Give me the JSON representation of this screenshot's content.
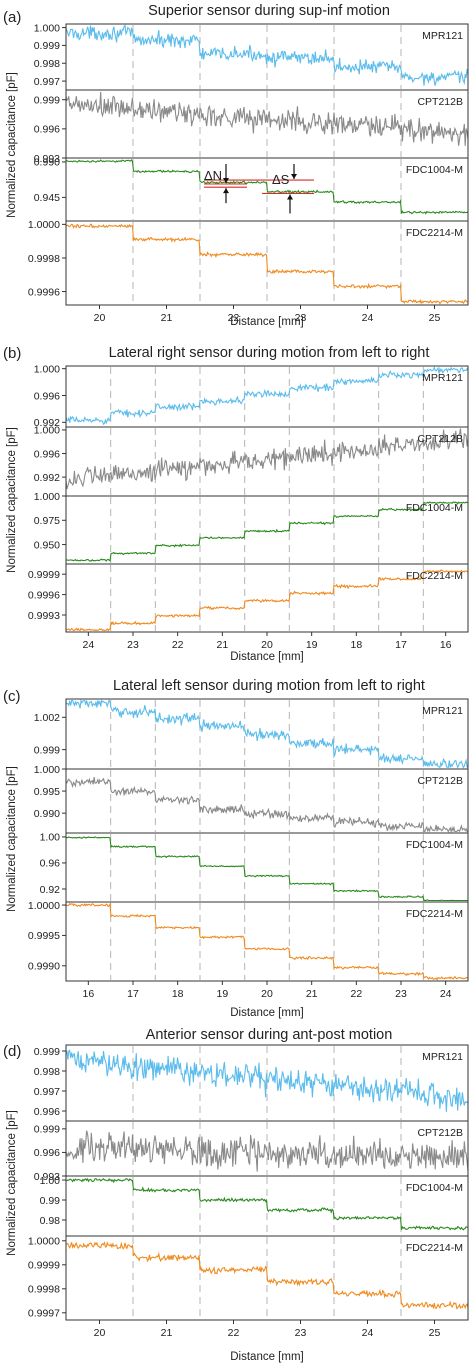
{
  "colors": {
    "MPR121": "#5bbcec",
    "CPT212B": "#8a8a8a",
    "FDC1004-M": "#2a8a1e",
    "FDC2214-M": "#f08a1e",
    "annotation": "#d62c2c"
  },
  "chart_data": [
    {
      "type": "line",
      "panel_letter": "(a)",
      "title": "Superior sensor during sup-inf motion",
      "xlabel": "Distance [mm]",
      "ylabel": "Normalized capacitance [pF]",
      "x_ticks": [
        "20",
        "21",
        "22",
        "23",
        "24",
        "25"
      ],
      "step_boundaries_mm": [
        20.5,
        21.5,
        22.5,
        23.5,
        24.5
      ],
      "xlim": [
        19.5,
        25.5
      ],
      "series": [
        {
          "name": "MPR121",
          "ylim": [
            0.9965,
            1.0002
          ],
          "y_ticks": [
            "1.000",
            "0.999",
            "0.998",
            "0.997"
          ],
          "y_tick_values": [
            1.0,
            0.999,
            0.998,
            0.997
          ],
          "levels": [
            0.9997,
            0.9993,
            0.9985,
            0.9983,
            0.9978,
            0.9972
          ],
          "noise": 0.00025
        },
        {
          "name": "CPT212B",
          "ylim": [
            0.993,
            1.0
          ],
          "y_ticks": [
            "0.999",
            "0.996",
            "0.993"
          ],
          "y_tick_values": [
            0.999,
            0.996,
            0.993
          ],
          "trend": [
            0.9985,
            0.9955
          ],
          "noise": 0.0008
        },
        {
          "name": "FDC1004-M",
          "ylim": [
            0.915,
            0.995
          ],
          "y_ticks": [
            "0.990",
            "0.945"
          ],
          "y_tick_values": [
            0.99,
            0.945
          ],
          "levels": [
            0.991,
            0.978,
            0.964,
            0.952,
            0.939,
            0.926
          ],
          "noise": 0.0008
        },
        {
          "name": "FDC2214-M",
          "ylim": [
            0.99952,
            1.00002
          ],
          "y_ticks": [
            "1.0000",
            "0.9998",
            "0.9996"
          ],
          "y_tick_values": [
            1.0,
            0.9998,
            0.9996
          ],
          "levels": [
            0.99999,
            0.99991,
            0.99982,
            0.99972,
            0.99963,
            0.99954
          ],
          "noise": 6e-06
        }
      ],
      "annotations": [
        "ΔN",
        "ΔS"
      ]
    },
    {
      "type": "line",
      "panel_letter": "(b)",
      "title": "Lateral right sensor during motion from left to right",
      "xlabel": "Distance [mm]",
      "ylabel": "Normalized capacitance [pF]",
      "x_ticks": [
        "24",
        "23",
        "22",
        "21",
        "20",
        "19",
        "18",
        "17",
        "16"
      ],
      "step_boundaries_mm": [
        23.5,
        22.5,
        21.5,
        20.5,
        19.5,
        18.5,
        17.5,
        16.5
      ],
      "xlim": [
        24.5,
        15.5
      ],
      "series": [
        {
          "name": "MPR121",
          "ylim": [
            0.9913,
            1.0004
          ],
          "y_ticks": [
            "1.000",
            "0.996",
            "0.992"
          ],
          "y_tick_values": [
            1.0,
            0.996,
            0.992
          ],
          "levels": [
            0.9923,
            0.9934,
            0.9943,
            0.9952,
            0.9962,
            0.9972,
            0.9981,
            0.9991,
            0.9998
          ],
          "noise": 0.0003
        },
        {
          "name": "CPT212B",
          "ylim": [
            0.9888,
            1.0005
          ],
          "y_ticks": [
            "1.000",
            "0.996",
            "0.992"
          ],
          "y_tick_values": [
            1.0,
            0.996,
            0.992
          ],
          "trend": [
            0.9915,
            0.9985
          ],
          "noise": 0.0011
        },
        {
          "name": "FDC1004-M",
          "ylim": [
            0.93,
            1.0
          ],
          "y_ticks": [
            "1.000",
            "0.975",
            "0.950"
          ],
          "y_tick_values": [
            1.0,
            0.975,
            0.95
          ],
          "levels": [
            0.934,
            0.941,
            0.949,
            0.957,
            0.964,
            0.972,
            0.979,
            0.986,
            0.993
          ],
          "noise": 0.0006
        },
        {
          "name": "FDC2214-M",
          "ylim": [
            0.99905,
            1.00005
          ],
          "y_ticks": [
            "0.9999",
            "0.9996",
            "0.9993"
          ],
          "y_tick_values": [
            0.9999,
            0.9996,
            0.9993
          ],
          "levels": [
            0.99908,
            0.99918,
            0.99929,
            0.9994,
            0.99951,
            0.99962,
            0.99972,
            0.99983,
            0.99994
          ],
          "noise": 1.2e-05
        }
      ]
    },
    {
      "type": "line",
      "panel_letter": "(c)",
      "title": "Lateral left sensor during motion from left to right",
      "xlabel": "Distance [mm]",
      "ylabel": "Normalized capacitance [pF]",
      "x_ticks": [
        "16",
        "17",
        "18",
        "19",
        "20",
        "21",
        "22",
        "23",
        "24"
      ],
      "step_boundaries_mm": [
        16.5,
        17.5,
        18.5,
        19.5,
        20.5,
        21.5,
        22.5,
        23.5
      ],
      "xlim": [
        15.5,
        24.5
      ],
      "series": [
        {
          "name": "MPR121",
          "ylim": [
            0.9972,
            1.0037
          ],
          "y_ticks": [
            "1.002",
            "0.999"
          ],
          "y_tick_values": [
            1.002,
            0.999
          ],
          "levels": [
            1.0033,
            1.0025,
            1.0019,
            1.0012,
            1.0004,
            0.9996,
            0.999,
            0.9982,
            0.9976
          ],
          "noise": 0.0003
        },
        {
          "name": "CPT212B",
          "ylim": [
            0.9855,
            1.0
          ],
          "y_ticks": [
            "1.000",
            "0.995",
            "0.990"
          ],
          "y_tick_values": [
            1.0,
            0.995,
            0.99
          ],
          "levels": [
            0.997,
            0.995,
            0.993,
            0.991,
            0.9898,
            0.9888,
            0.988,
            0.987,
            0.9862
          ],
          "noise": 0.0006
        },
        {
          "name": "FDC1004-M",
          "ylim": [
            0.9,
            1.006
          ],
          "y_ticks": [
            "1.00",
            "0.96",
            "0.92"
          ],
          "y_tick_values": [
            1.0,
            0.96,
            0.92
          ],
          "levels": [
            0.999,
            0.985,
            0.97,
            0.955,
            0.94,
            0.928,
            0.917,
            0.908,
            0.902
          ],
          "noise": 0.0007
        },
        {
          "name": "FDC2214-M",
          "ylim": [
            0.99875,
            1.00005
          ],
          "y_ticks": [
            "1.0000",
            "0.9995",
            "0.9990"
          ],
          "y_tick_values": [
            1.0,
            0.9995,
            0.999
          ],
          "levels": [
            1.0,
            0.99982,
            0.99963,
            0.99947,
            0.99928,
            0.99913,
            0.99897,
            0.99887,
            0.9988
          ],
          "noise": 1.2e-05
        }
      ]
    },
    {
      "type": "line",
      "panel_letter": "(d)",
      "title": "Anterior sensor during ant-post motion",
      "xlabel": "Distance [mm]",
      "ylabel": "Normalized capacitance [pF]",
      "x_ticks": [
        "20",
        "21",
        "22",
        "23",
        "24",
        "25"
      ],
      "step_boundaries_mm": [
        20.5,
        21.5,
        22.5,
        23.5,
        24.5
      ],
      "xlim": [
        19.5,
        25.5
      ],
      "series": [
        {
          "name": "MPR121",
          "ylim": [
            0.9955,
            0.9993
          ],
          "y_ticks": [
            "0.999",
            "0.998",
            "0.997",
            "0.996"
          ],
          "y_tick_values": [
            0.999,
            0.998,
            0.997,
            0.996
          ],
          "trend": [
            0.9986,
            0.9966
          ],
          "noise": 0.0004
        },
        {
          "name": "CPT212B",
          "ylim": [
            0.993,
            1.0
          ],
          "y_ticks": [
            "0.999",
            "0.996",
            "0.993"
          ],
          "y_tick_values": [
            0.999,
            0.996,
            0.993
          ],
          "trend": [
            0.9965,
            0.9955
          ],
          "noise": 0.0012
        },
        {
          "name": "FDC1004-M",
          "ylim": [
            0.972,
            1.002
          ],
          "y_ticks": [
            "1.00",
            "0.99",
            "0.98"
          ],
          "y_tick_values": [
            1.0,
            0.99,
            0.98
          ],
          "levels": [
            1.0,
            0.995,
            0.99,
            0.985,
            0.981,
            0.976
          ],
          "noise": 0.0005
        },
        {
          "name": "FDC2214-M",
          "ylim": [
            0.99967,
            1.00002
          ],
          "y_ticks": [
            "1.0000",
            "0.9999",
            "0.9998",
            "0.9997"
          ],
          "y_tick_values": [
            1.0,
            0.9999,
            0.9998,
            0.9997
          ],
          "levels": [
            0.99998,
            0.99993,
            0.99988,
            0.99983,
            0.99978,
            0.99973
          ],
          "noise": 8e-06
        }
      ]
    }
  ]
}
